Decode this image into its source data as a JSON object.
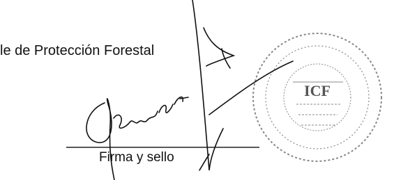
{
  "header": {
    "title": "le de Protección Forestal"
  },
  "signature_block": {
    "caption": "Firma y sello",
    "stamp_label": "ICF"
  }
}
